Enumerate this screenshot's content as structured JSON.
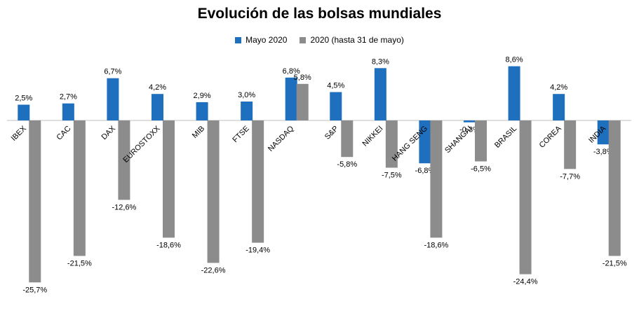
{
  "chart_data": {
    "type": "bar",
    "title": "Evolución de las bolsas mundiales",
    "xlabel": "",
    "ylabel": "",
    "ylim": [
      -28,
      9
    ],
    "grid": false,
    "legend_position": "top-center",
    "categories": [
      "IBEX",
      "CAC",
      "DAX",
      "EUROSTOXX",
      "MIB",
      "FTSE",
      "NASDAQ",
      "S&P",
      "NIKKEI",
      "HANG SENG",
      "SHANGAI",
      "BRASIL",
      "COREA",
      "INDIA"
    ],
    "series": [
      {
        "name": "Mayo 2020",
        "color": "#1F6FBF",
        "values": [
          2.5,
          2.7,
          6.7,
          4.2,
          2.9,
          3.0,
          6.8,
          4.5,
          8.3,
          -6.8,
          -0.3,
          8.6,
          4.2,
          -3.8
        ],
        "labels": [
          "2,5%",
          "2,7%",
          "6,7%",
          "4,2%",
          "2,9%",
          "3,0%",
          "6,8%",
          "4,5%",
          "8,3%",
          "-6,8%",
          "-0,3%",
          "8,6%",
          "4,2%",
          "-3,8%"
        ]
      },
      {
        "name": "2020 (hasta 31 de mayo)",
        "color": "#8C8C8C",
        "values": [
          -25.7,
          -21.5,
          -12.6,
          -18.6,
          -22.6,
          -19.4,
          5.8,
          -5.8,
          -7.5,
          -18.6,
          -6.5,
          -24.4,
          -7.7,
          -21.5
        ],
        "labels": [
          "-25,7%",
          "-21,5%",
          "-12,6%",
          "-18,6%",
          "-22,6%",
          "-19,4%",
          "5,8%",
          "-5,8%",
          "-7,5%",
          "-18,6%",
          "-6,5%",
          "-24,4%",
          "-7,7%",
          "-21,5%"
        ]
      }
    ]
  }
}
